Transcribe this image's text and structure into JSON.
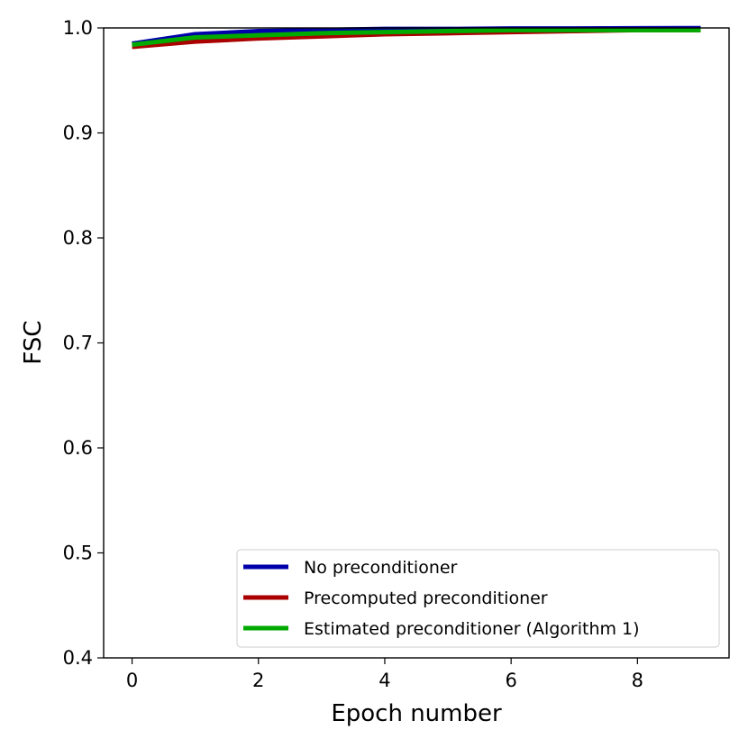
{
  "chart_data": {
    "type": "line",
    "title": "",
    "xlabel": "Epoch number",
    "ylabel": "FSC",
    "xlim": [
      -0.45,
      9.45
    ],
    "ylim": [
      0.4,
      1.0
    ],
    "xticks": [
      0,
      2,
      4,
      6,
      8
    ],
    "yticks": [
      0.4,
      0.5,
      0.6,
      0.7,
      0.8,
      0.9,
      1.0
    ],
    "xtick_labels": [
      "0",
      "2",
      "4",
      "6",
      "8"
    ],
    "ytick_labels": [
      "0.4",
      "0.5",
      "0.6",
      "0.7",
      "0.8",
      "0.9",
      "1.0"
    ],
    "grid": false,
    "legend_position": "bottom-right",
    "x": [
      0,
      1,
      2,
      3,
      4,
      5,
      6,
      7,
      8,
      9
    ],
    "series": [
      {
        "name": "No preconditioner",
        "color": "#0000aa",
        "values": [
          0.985,
          0.994,
          0.997,
          0.998,
          0.999,
          0.999,
          0.9995,
          0.9995,
          0.9997,
          0.9998
        ]
      },
      {
        "name": "Precomputed preconditioner",
        "color": "#aa0000",
        "values": [
          0.982,
          0.987,
          0.99,
          0.992,
          0.994,
          0.995,
          0.996,
          0.997,
          0.998,
          0.998
        ]
      },
      {
        "name": "Estimated preconditioner (Algorithm 1)",
        "color": "#00aa00",
        "values": [
          0.984,
          0.991,
          0.993,
          0.995,
          0.996,
          0.997,
          0.998,
          0.998,
          0.998,
          0.998
        ]
      }
    ]
  }
}
